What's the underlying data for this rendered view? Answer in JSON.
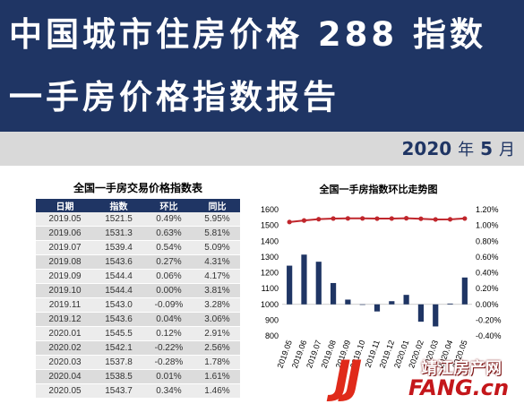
{
  "header": {
    "title_line1": "中国城市住房价格 288 指数",
    "title_line2": "一手房价格指数报告",
    "period_year": "2020",
    "period_year_unit": "年",
    "period_month": "5",
    "period_month_unit": "月"
  },
  "table": {
    "title": "全国一手房交易价格指数表",
    "headers": [
      "日期",
      "指数",
      "环比",
      "同比"
    ],
    "rows": [
      [
        "2019.05",
        "1521.5",
        "0.49%",
        "5.95%"
      ],
      [
        "2019.06",
        "1531.3",
        "0.63%",
        "5.81%"
      ],
      [
        "2019.07",
        "1539.4",
        "0.54%",
        "5.09%"
      ],
      [
        "2019.08",
        "1543.6",
        "0.27%",
        "4.31%"
      ],
      [
        "2019.09",
        "1544.4",
        "0.06%",
        "4.17%"
      ],
      [
        "2019.10",
        "1544.4",
        "0.00%",
        "3.81%"
      ],
      [
        "2019.11",
        "1543.0",
        "-0.09%",
        "3.28%"
      ],
      [
        "2019.12",
        "1543.6",
        "0.04%",
        "3.06%"
      ],
      [
        "2020.01",
        "1545.5",
        "0.12%",
        "2.91%"
      ],
      [
        "2020.02",
        "1542.1",
        "-0.22%",
        "2.56%"
      ],
      [
        "2020.03",
        "1537.8",
        "-0.28%",
        "1.78%"
      ],
      [
        "2020.04",
        "1538.5",
        "0.01%",
        "1.61%"
      ],
      [
        "2020.05",
        "1543.7",
        "0.34%",
        "1.46%"
      ]
    ]
  },
  "chart_data": {
    "type": "bar",
    "title": "全国一手房指数环比走势图",
    "categories": [
      "2019.05",
      "2019.06",
      "2019.07",
      "2019.08",
      "2019.09",
      "2019.10",
      "2019.11",
      "2019.12",
      "2020.01",
      "2020.02",
      "2020.03",
      "2020.04",
      "2020.05"
    ],
    "series": [
      {
        "kind": "line",
        "axis": "left",
        "values": [
          1521.5,
          1531.3,
          1539.4,
          1543.6,
          1544.4,
          1544.4,
          1543.0,
          1543.6,
          1545.5,
          1542.1,
          1537.8,
          1538.5,
          1543.7
        ],
        "color": "#c0262c"
      },
      {
        "kind": "bar",
        "axis": "right",
        "values": [
          0.49,
          0.63,
          0.54,
          0.27,
          0.06,
          0.0,
          -0.09,
          0.04,
          0.12,
          -0.22,
          -0.28,
          0.01,
          0.34
        ],
        "color": "#1f3564"
      }
    ],
    "left_axis": {
      "min": 800,
      "max": 1600,
      "ticks": [
        "1600",
        "1500",
        "1400",
        "1300",
        "1200",
        "1100",
        "1000",
        "900",
        "800"
      ]
    },
    "right_axis": {
      "min": -0.4,
      "max": 1.2,
      "ticks": [
        "1.20%",
        "1.00%",
        "0.80%",
        "0.60%",
        "0.40%",
        "0.20%",
        "0.00%",
        "-0.20%",
        "-0.40%"
      ]
    },
    "grid": false,
    "legend": "none"
  },
  "watermark": {
    "logo_letters": "JJ",
    "site_cn": "靖江房产网",
    "site_en": "FANG.cn"
  },
  "colors": {
    "header_bg": "#1f3564",
    "period_band": "#d9d9d9",
    "bar": "#1f3564",
    "line": "#c0262c",
    "watermark_red": "#e02a1a"
  }
}
